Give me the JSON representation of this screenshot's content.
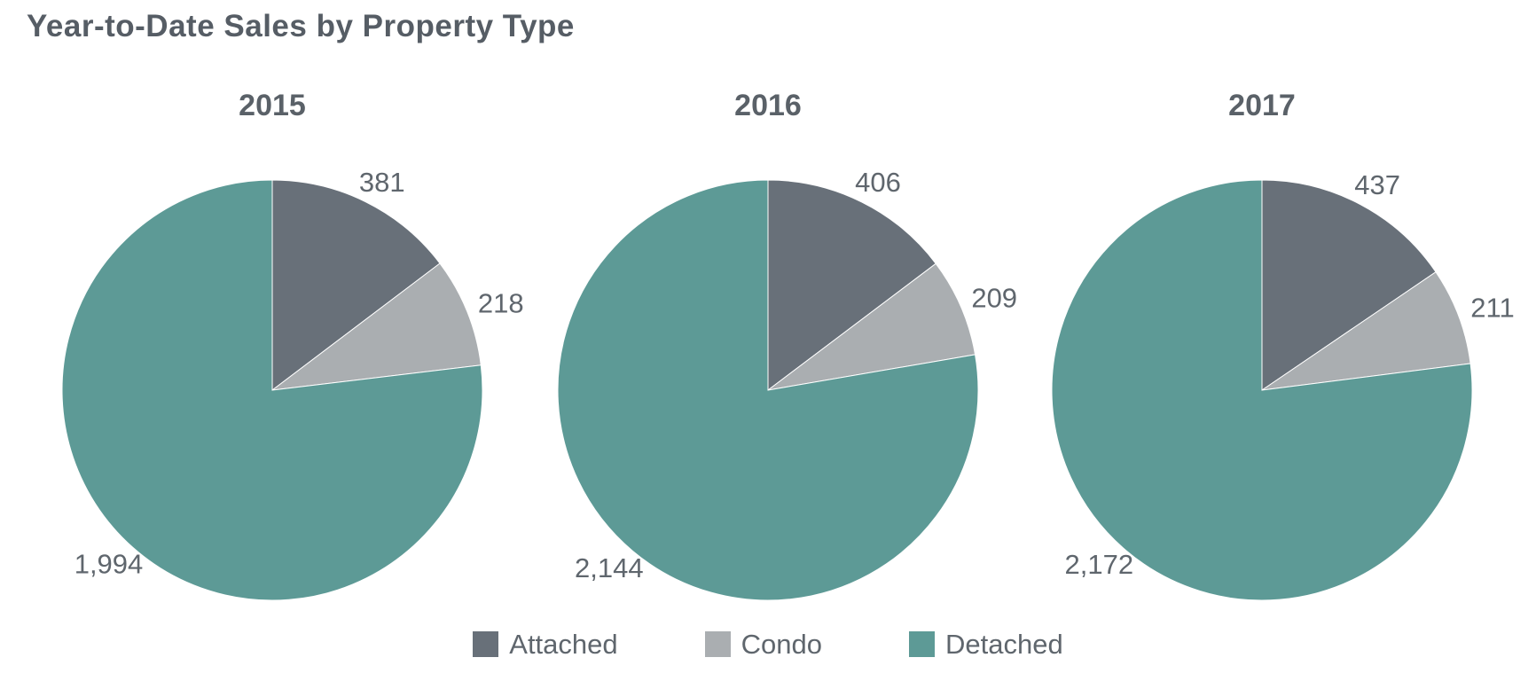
{
  "title": "Year-to-Date Sales by Property Type",
  "colors": {
    "attached": "#687079",
    "condo": "#aaaeb1",
    "detached": "#5d9a96",
    "title_text": "#565d65",
    "label_text": "#5f666d",
    "background": "#ffffff"
  },
  "legend": {
    "position": "bottom-center",
    "items": [
      {
        "label": "Attached",
        "color": "#687079"
      },
      {
        "label": "Condo",
        "color": "#aaaeb1"
      },
      {
        "label": "Detached",
        "color": "#5d9a96"
      }
    ]
  },
  "chart_data": [
    {
      "type": "pie",
      "title": "2015",
      "labels": [
        "Attached",
        "Condo",
        "Detached"
      ],
      "values": [
        381,
        218,
        1994
      ],
      "display_values": [
        "381",
        "218",
        "1,994"
      ],
      "colors": [
        "#687079",
        "#aaaeb1",
        "#5d9a96"
      ],
      "start_angle_deg": 0,
      "direction": "clockwise",
      "data_labels": "outside"
    },
    {
      "type": "pie",
      "title": "2016",
      "labels": [
        "Attached",
        "Condo",
        "Detached"
      ],
      "values": [
        406,
        209,
        2144
      ],
      "display_values": [
        "406",
        "209",
        "2,144"
      ],
      "colors": [
        "#687079",
        "#aaaeb1",
        "#5d9a96"
      ],
      "start_angle_deg": 0,
      "direction": "clockwise",
      "data_labels": "outside"
    },
    {
      "type": "pie",
      "title": "2017",
      "labels": [
        "Attached",
        "Condo",
        "Detached"
      ],
      "values": [
        437,
        211,
        2172
      ],
      "display_values": [
        "437",
        "211",
        "2,172"
      ],
      "colors": [
        "#687079",
        "#aaaeb1",
        "#5d9a96"
      ],
      "start_angle_deg": 0,
      "direction": "clockwise",
      "data_labels": "outside"
    }
  ]
}
